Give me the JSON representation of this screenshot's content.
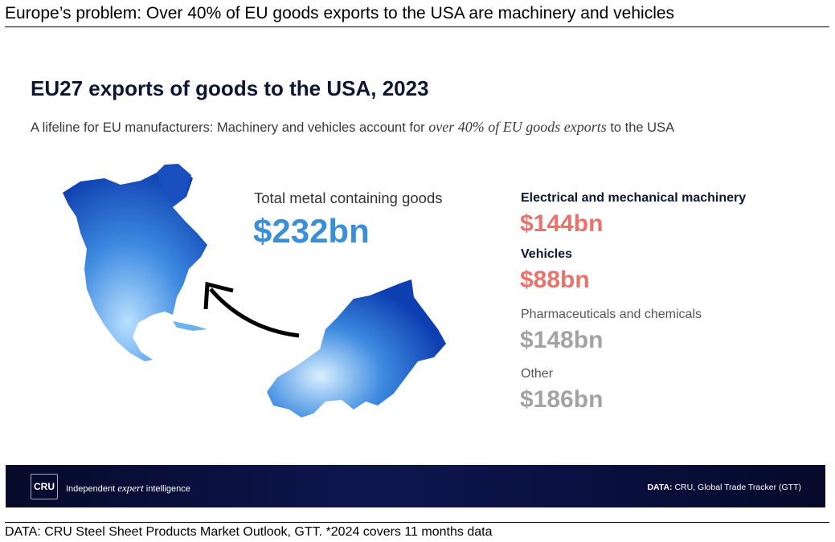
{
  "header": {
    "title": "Europe’s problem: Over 40% of EU goods exports to the USA are machinery and vehicles"
  },
  "slide": {
    "title": "EU27 exports of goods to the USA, 2023",
    "subtitle": {
      "before": "A lifeline for EU manufacturers: Machinery and vehicles account for",
      "emphasis": "over 40% of EU goods exports",
      "after": "to the USA"
    },
    "total": {
      "label": "Total metal containing goods",
      "value": "$232bn"
    },
    "items": [
      {
        "label": "Electrical and mechanical machinery",
        "value": "$144bn"
      },
      {
        "label": "Vehicles",
        "value": "$88bn"
      },
      {
        "label": "Pharmaceuticals and chemicals",
        "value": "$148bn"
      },
      {
        "label": "Other",
        "value": "$186bn"
      }
    ],
    "footer": {
      "logo": "CRU",
      "tagline": {
        "before": "Independent",
        "emphasis": "expert",
        "after": "intelligence"
      },
      "source": {
        "label": "DATA:",
        "text": "CRU, Global Trade Tracker (GTT)"
      }
    }
  },
  "note": "DATA: CRU Steel Sheet Products Market Outlook, GTT. *2024 covers 11 months data"
}
